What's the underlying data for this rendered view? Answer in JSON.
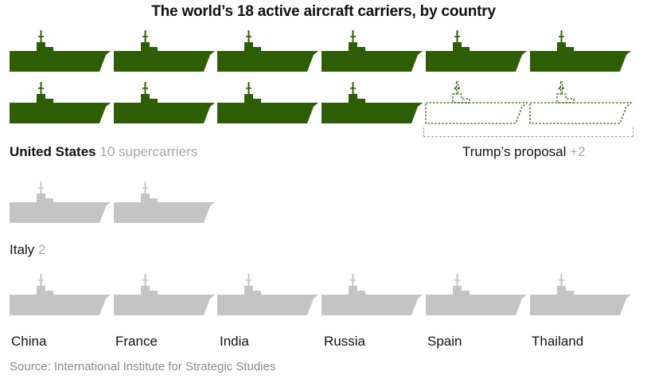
{
  "chart_data": {
    "type": "pictogram",
    "title": "The world’s 18 active aircraft carriers, by country",
    "groups": [
      {
        "name": "United States",
        "count": 10,
        "note": "10 supercarriers",
        "color": "#2d5d05"
      },
      {
        "name": "Italy",
        "count": 2,
        "note": "2",
        "color": "#c4c4c4"
      },
      {
        "name": "China",
        "count": 1,
        "color": "#c4c4c4"
      },
      {
        "name": "France",
        "count": 1,
        "color": "#c4c4c4"
      },
      {
        "name": "India",
        "count": 1,
        "color": "#c4c4c4"
      },
      {
        "name": "Russia",
        "count": 1,
        "color": "#c4c4c4"
      },
      {
        "name": "Spain",
        "count": 1,
        "color": "#c4c4c4"
      },
      {
        "name": "Thailand",
        "count": 1,
        "color": "#c4c4c4"
      }
    ],
    "proposal": {
      "label": "Trump’s proposal",
      "extra": "+2",
      "count": 2,
      "color": "#2d5d05"
    }
  },
  "source": "Source: International Institute for Strategic Studies"
}
